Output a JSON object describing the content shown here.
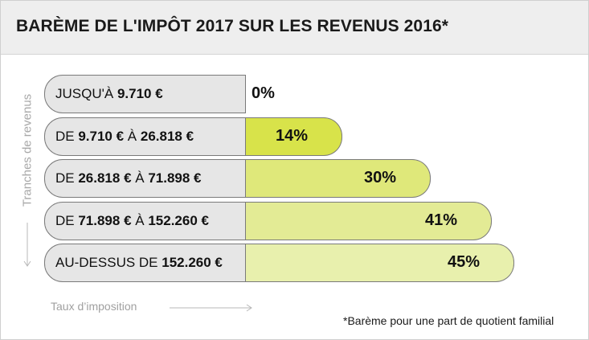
{
  "header": {
    "title": "BARÈME DE L'IMPÔT 2017 SUR LES REVENUS 2016*"
  },
  "footnote": "*Barème pour une part de quotient familial",
  "colors": {
    "header_bg": "#eeeeee",
    "label_bg": "#e6e6e6",
    "bar_colors": [
      "#ffffff",
      "#d8e34a",
      "#dfe87a",
      "#e3eb95",
      "#e8f0ad"
    ]
  },
  "chart_data": {
    "type": "bar",
    "orientation": "horizontal",
    "title": "BARÈME DE L'IMPÔT 2017 SUR LES REVENUS 2016*",
    "ylabel": "Tranches de revenus",
    "xlabel": "Taux d’imposition",
    "xlim": [
      0,
      45
    ],
    "grid": false,
    "categories": [
      "JUSQU'À 9.710 €",
      "DE 9.710 € À 26.818 €",
      "DE 26.818 € À 71.898 €",
      "DE 71.898 € À 152.260 €",
      "AU-DESSUS DE 152.260 €"
    ],
    "category_parts": [
      {
        "prefix": "JUSQU'À ",
        "a": "9.710 €",
        "mid": "",
        "b": ""
      },
      {
        "prefix": "DE ",
        "a": "9.710 €",
        "mid": " À ",
        "b": "26.818 €"
      },
      {
        "prefix": "DE ",
        "a": "26.818 €",
        "mid": " À ",
        "b": "71.898 €"
      },
      {
        "prefix": "DE ",
        "a": "71.898 €",
        "mid": " À ",
        "b": "152.260 €"
      },
      {
        "prefix": "AU-DESSUS DE ",
        "a": "152.260 €",
        "mid": "",
        "b": ""
      }
    ],
    "values": [
      0,
      14,
      30,
      41,
      45
    ],
    "value_labels": [
      "0%",
      "14%",
      "30%",
      "41%",
      "45%"
    ]
  }
}
